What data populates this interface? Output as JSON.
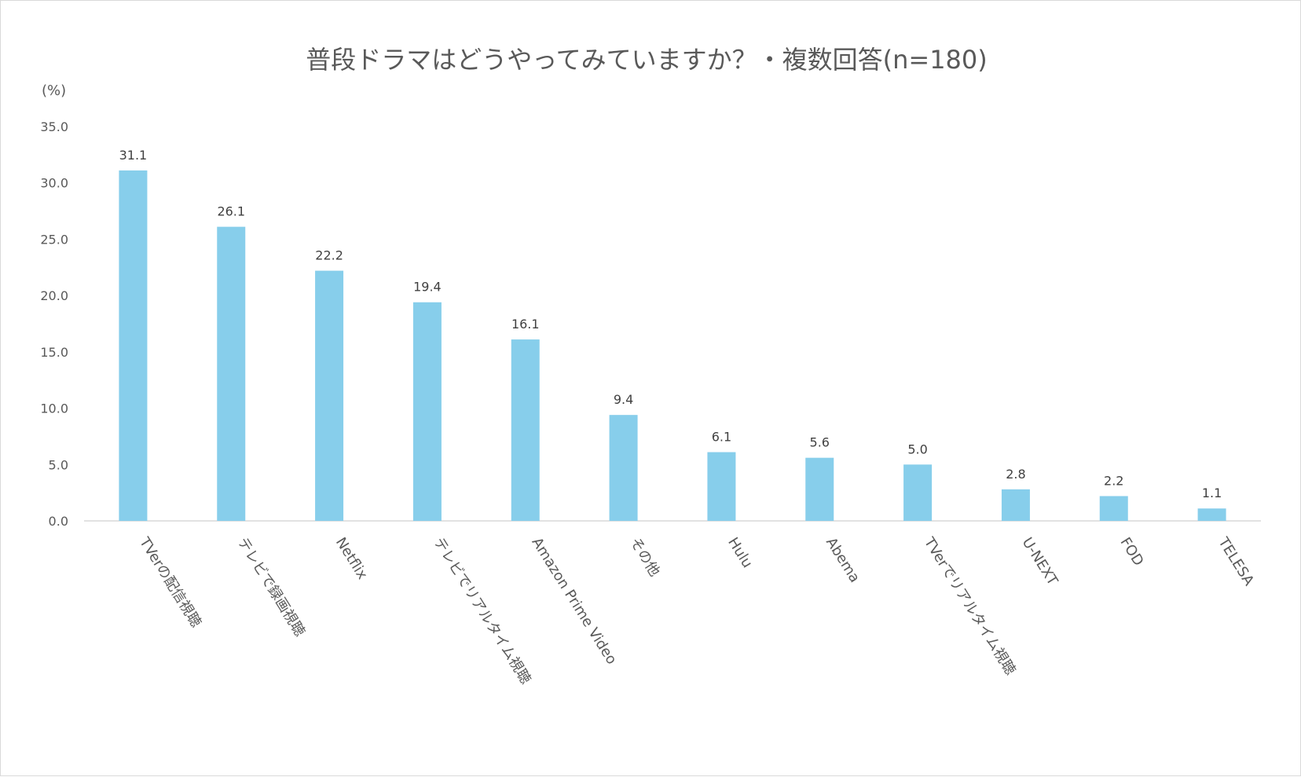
{
  "chart_data": {
    "type": "bar",
    "title": "普段ドラマはどうやってみていますか？・複数回答(n=180)",
    "y_unit_label": "(%)",
    "categories": [
      "TVerの配信視聴",
      "テレビで録画視聴",
      "Netflix",
      "テレビでリアルタイム視聴",
      "Amazon Prime Video",
      "その他",
      "Hulu",
      "Abema",
      "TVerでリアルタイム視聴",
      "U-NEXT",
      "FOD",
      "TELESA"
    ],
    "values": [
      31.1,
      26.1,
      22.2,
      19.4,
      16.1,
      9.4,
      6.1,
      5.6,
      5.0,
      2.8,
      2.2,
      1.1
    ],
    "value_labels": [
      "31.1",
      "26.1",
      "22.2",
      "19.4",
      "16.1",
      "9.4",
      "6.1",
      "5.6",
      "5.0",
      "2.8",
      "2.2",
      "1.1"
    ],
    "ylim": [
      0,
      35
    ],
    "y_ticks": [
      0,
      5,
      10,
      15,
      20,
      25,
      30,
      35
    ],
    "y_tick_labels": [
      "0.0",
      "5.0",
      "10.0",
      "15.0",
      "20.0",
      "25.0",
      "30.0",
      "35.0"
    ],
    "grid": false,
    "legend": "none",
    "colors": {
      "bar": "#87CEEB",
      "axis": "#d9d9d9",
      "text": "#595959"
    }
  }
}
